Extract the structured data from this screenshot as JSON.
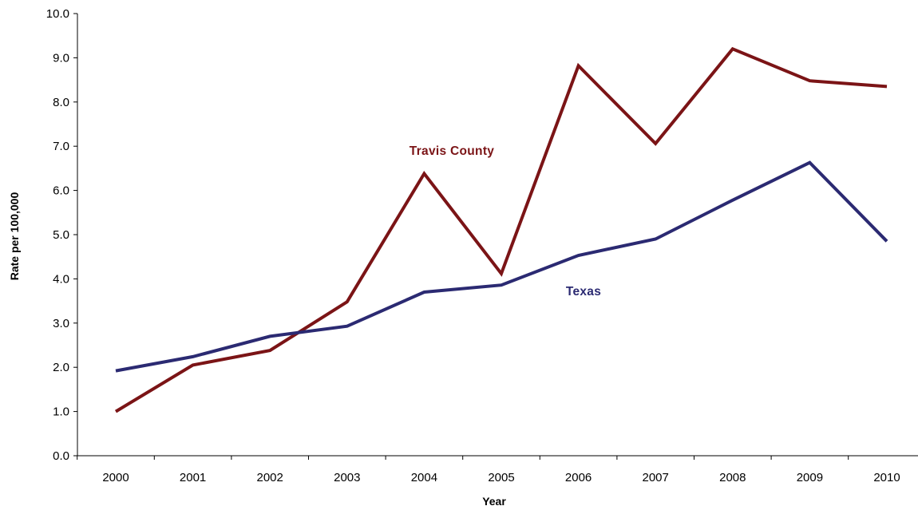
{
  "chart_data": {
    "type": "line",
    "categories": [
      "2000",
      "2001",
      "2002",
      "2003",
      "2004",
      "2005",
      "2006",
      "2007",
      "2008",
      "2009",
      "2010"
    ],
    "series": [
      {
        "name": "Travis County",
        "color": "#7B1416",
        "values": [
          1.0,
          2.05,
          2.38,
          3.48,
          6.38,
          4.12,
          8.82,
          7.06,
          9.2,
          8.48,
          8.35
        ]
      },
      {
        "name": "Texas",
        "color": "#2B2A72",
        "values": [
          1.92,
          2.24,
          2.7,
          2.93,
          3.7,
          3.86,
          4.53,
          4.9,
          5.78,
          6.63,
          4.85
        ]
      }
    ],
    "ylim": [
      0,
      10
    ],
    "yticks": [
      "0.0",
      "1.0",
      "2.0",
      "3.0",
      "4.0",
      "5.0",
      "6.0",
      "7.0",
      "8.0",
      "9.0",
      "10.0"
    ],
    "xlabel": "Year",
    "ylabel": "Rate per 100,000",
    "grid": false,
    "legend": "inline-labels"
  }
}
